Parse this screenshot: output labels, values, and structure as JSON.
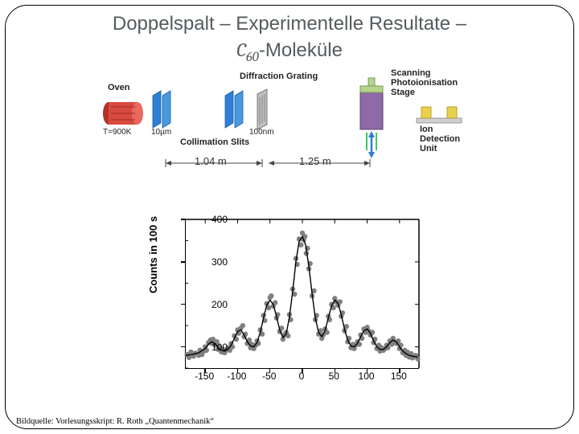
{
  "title_line1": "Doppelspalt – Experimentelle Resultate –",
  "title_mol": "C",
  "title_sub": "60",
  "title_tail": "-Moleküle",
  "apparatus": {
    "oven_label": "Oven",
    "oven_temp": "T=900K",
    "slit1_size": "10µm",
    "coll_label": "Collimation Slits",
    "grating_label": "Diffraction Grating",
    "grating_size": "100nm",
    "scan_label_l1": "Scanning",
    "scan_label_l2": "Photoionisation",
    "scan_label_l3": "Stage",
    "detect_l1": "Ion",
    "detect_l2": "Detection",
    "detect_l3": "Unit",
    "dist1": "1.04 m",
    "dist2": "1.25 m",
    "oven_color": "#d84a3f",
    "oven_cap_color": "#b43228",
    "slit_color": "#2f7fd4",
    "grating_color": "#9a9a9a",
    "detector_body": "#8f6aa8",
    "detector_cap": "#b4d48a",
    "laser_color": "#3ec760",
    "ion_unit_color": "#e8d24a"
  },
  "chart": {
    "type": "scatter+line",
    "ylabel": "Counts in 100 s",
    "ylim": [
      50,
      400
    ],
    "ytick_step": 100,
    "yticks": [
      100,
      200,
      300,
      400
    ],
    "xlim": [
      -180,
      180
    ],
    "xticks": [
      -150,
      -100,
      -50,
      0,
      50,
      100,
      150
    ],
    "background_color": "#ffffff",
    "axis_color": "#000000",
    "label_fontsize": 13,
    "tick_fontsize": 12,
    "marker_color": "#808080",
    "marker_size": 3.2,
    "line_color": "#000000",
    "line_width": 1.4,
    "fit_curve": [
      [
        -180,
        80
      ],
      [
        -170,
        82
      ],
      [
        -160,
        86
      ],
      [
        -150,
        96
      ],
      [
        -145,
        106
      ],
      [
        -140,
        112
      ],
      [
        -135,
        108
      ],
      [
        -130,
        98
      ],
      [
        -125,
        92
      ],
      [
        -120,
        90
      ],
      [
        -115,
        94
      ],
      [
        -110,
        104
      ],
      [
        -105,
        120
      ],
      [
        -100,
        136
      ],
      [
        -95,
        140
      ],
      [
        -90,
        128
      ],
      [
        -85,
        112
      ],
      [
        -80,
        102
      ],
      [
        -75,
        100
      ],
      [
        -70,
        110
      ],
      [
        -65,
        134
      ],
      [
        -60,
        168
      ],
      [
        -55,
        198
      ],
      [
        -50,
        210
      ],
      [
        -45,
        200
      ],
      [
        -40,
        172
      ],
      [
        -35,
        140
      ],
      [
        -30,
        122
      ],
      [
        -25,
        130
      ],
      [
        -20,
        170
      ],
      [
        -15,
        230
      ],
      [
        -10,
        300
      ],
      [
        -5,
        348
      ],
      [
        0,
        360
      ],
      [
        5,
        340
      ],
      [
        10,
        290
      ],
      [
        15,
        225
      ],
      [
        20,
        168
      ],
      [
        25,
        134
      ],
      [
        30,
        124
      ],
      [
        35,
        138
      ],
      [
        40,
        168
      ],
      [
        45,
        196
      ],
      [
        50,
        210
      ],
      [
        55,
        202
      ],
      [
        60,
        176
      ],
      [
        65,
        142
      ],
      [
        70,
        116
      ],
      [
        75,
        102
      ],
      [
        80,
        100
      ],
      [
        85,
        108
      ],
      [
        90,
        124
      ],
      [
        95,
        138
      ],
      [
        100,
        142
      ],
      [
        105,
        132
      ],
      [
        110,
        114
      ],
      [
        115,
        100
      ],
      [
        120,
        94
      ],
      [
        125,
        94
      ],
      [
        130,
        100
      ],
      [
        135,
        110
      ],
      [
        140,
        116
      ],
      [
        145,
        112
      ],
      [
        150,
        100
      ],
      [
        155,
        90
      ],
      [
        160,
        84
      ],
      [
        165,
        80
      ],
      [
        170,
        78
      ],
      [
        178,
        76
      ]
    ],
    "scatter": [
      [
        -178,
        82
      ],
      [
        -175,
        75
      ],
      [
        -172,
        88
      ],
      [
        -168,
        78
      ],
      [
        -165,
        85
      ],
      [
        -160,
        80
      ],
      [
        -158,
        92
      ],
      [
        -155,
        82
      ],
      [
        -152,
        90
      ],
      [
        -150,
        100
      ],
      [
        -148,
        92
      ],
      [
        -145,
        110
      ],
      [
        -142,
        116
      ],
      [
        -140,
        108
      ],
      [
        -138,
        118
      ],
      [
        -135,
        104
      ],
      [
        -132,
        112
      ],
      [
        -130,
        94
      ],
      [
        -128,
        100
      ],
      [
        -125,
        88
      ],
      [
        -122,
        94
      ],
      [
        -120,
        86
      ],
      [
        -118,
        92
      ],
      [
        -115,
        98
      ],
      [
        -112,
        92
      ],
      [
        -110,
        108
      ],
      [
        -108,
        100
      ],
      [
        -105,
        126
      ],
      [
        -102,
        118
      ],
      [
        -100,
        140
      ],
      [
        -98,
        132
      ],
      [
        -95,
        144
      ],
      [
        -92,
        150
      ],
      [
        -90,
        124
      ],
      [
        -88,
        130
      ],
      [
        -85,
        108
      ],
      [
        -82,
        116
      ],
      [
        -80,
        98
      ],
      [
        -78,
        106
      ],
      [
        -75,
        96
      ],
      [
        -72,
        104
      ],
      [
        -70,
        114
      ],
      [
        -68,
        108
      ],
      [
        -65,
        140
      ],
      [
        -62,
        130
      ],
      [
        -60,
        174
      ],
      [
        -58,
        162
      ],
      [
        -55,
        202
      ],
      [
        -52,
        192
      ],
      [
        -50,
        216
      ],
      [
        -48,
        220
      ],
      [
        -45,
        196
      ],
      [
        -42,
        204
      ],
      [
        -40,
        168
      ],
      [
        -38,
        176
      ],
      [
        -35,
        136
      ],
      [
        -32,
        144
      ],
      [
        -30,
        118
      ],
      [
        -28,
        128
      ],
      [
        -25,
        134
      ],
      [
        -22,
        126
      ],
      [
        -20,
        176
      ],
      [
        -18,
        164
      ],
      [
        -15,
        236
      ],
      [
        -12,
        224
      ],
      [
        -10,
        308
      ],
      [
        -8,
        294
      ],
      [
        -5,
        354
      ],
      [
        -2,
        340
      ],
      [
        0,
        368
      ],
      [
        2,
        352
      ],
      [
        4,
        360
      ],
      [
        6,
        320
      ],
      [
        8,
        332
      ],
      [
        10,
        284
      ],
      [
        12,
        296
      ],
      [
        15,
        220
      ],
      [
        18,
        232
      ],
      [
        20,
        164
      ],
      [
        22,
        174
      ],
      [
        25,
        130
      ],
      [
        28,
        138
      ],
      [
        30,
        120
      ],
      [
        32,
        128
      ],
      [
        35,
        142
      ],
      [
        38,
        134
      ],
      [
        40,
        172
      ],
      [
        42,
        164
      ],
      [
        45,
        200
      ],
      [
        48,
        192
      ],
      [
        50,
        214
      ],
      [
        52,
        206
      ],
      [
        55,
        198
      ],
      [
        58,
        206
      ],
      [
        60,
        172
      ],
      [
        62,
        180
      ],
      [
        65,
        138
      ],
      [
        68,
        148
      ],
      [
        70,
        112
      ],
      [
        72,
        120
      ],
      [
        75,
        98
      ],
      [
        78,
        106
      ],
      [
        80,
        96
      ],
      [
        82,
        104
      ],
      [
        85,
        112
      ],
      [
        88,
        106
      ],
      [
        90,
        128
      ],
      [
        92,
        120
      ],
      [
        95,
        142
      ],
      [
        98,
        134
      ],
      [
        100,
        146
      ],
      [
        102,
        138
      ],
      [
        105,
        128
      ],
      [
        108,
        134
      ],
      [
        110,
        110
      ],
      [
        112,
        118
      ],
      [
        115,
        96
      ],
      [
        118,
        104
      ],
      [
        120,
        90
      ],
      [
        122,
        98
      ],
      [
        125,
        92
      ],
      [
        128,
        96
      ],
      [
        130,
        104
      ],
      [
        132,
        98
      ],
      [
        135,
        114
      ],
      [
        138,
        106
      ],
      [
        140,
        120
      ],
      [
        142,
        112
      ],
      [
        145,
        108
      ],
      [
        148,
        114
      ],
      [
        150,
        96
      ],
      [
        152,
        104
      ],
      [
        155,
        86
      ],
      [
        158,
        92
      ],
      [
        160,
        80
      ],
      [
        162,
        88
      ],
      [
        165,
        76
      ],
      [
        168,
        84
      ],
      [
        170,
        74
      ],
      [
        175,
        80
      ],
      [
        178,
        72
      ]
    ]
  },
  "source_citation": "Bildquelle: Vorlesungsskript: R. Roth „Quantenmechanik“"
}
